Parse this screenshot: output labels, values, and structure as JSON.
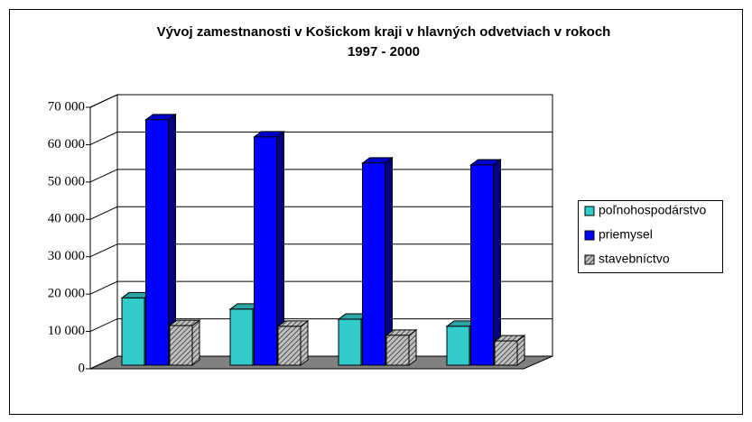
{
  "chart_data": {
    "type": "bar3d",
    "title": [
      "Vývoj zamestnanosti v Košickom kraji v hlavných odvetviach v rokoch",
      "1997 - 2000"
    ],
    "categories": [
      null,
      null,
      null,
      null
    ],
    "series": [
      {
        "name": "poľnohospodárstvo",
        "color": "#33cccc",
        "values": [
          18000,
          15000,
          12300,
          10400
        ]
      },
      {
        "name": "priemysel",
        "color": "#0000ff",
        "values": [
          65700,
          61100,
          54100,
          53600
        ]
      },
      {
        "name": "stavebníctvo",
        "color": "#808080",
        "hatch": true,
        "values": [
          10600,
          10400,
          8000,
          6500
        ]
      }
    ],
    "ylim": [
      0,
      70000
    ],
    "yticks": [
      0,
      {
        "value": 10000,
        "label": "10 000"
      },
      {
        "value": 20000,
        "label": "20 000"
      },
      {
        "value": 30000,
        "label": "30 000"
      },
      {
        "value": 40000,
        "label": "40 000"
      },
      {
        "value": 50000,
        "label": "50 000"
      },
      {
        "value": 60000,
        "label": "60 000"
      },
      {
        "value": 70000,
        "label": "70 000"
      }
    ],
    "grid": true,
    "legend": "right"
  }
}
